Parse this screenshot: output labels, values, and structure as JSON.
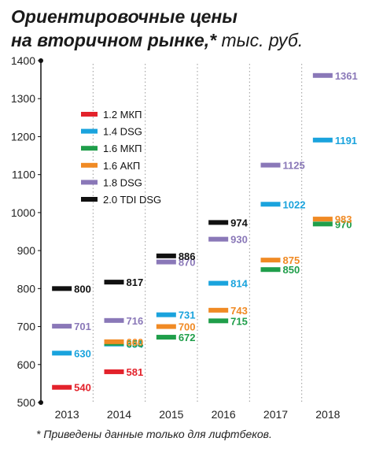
{
  "header": {
    "title_bold_1": "Ориентировочные цены",
    "title_bold_2": "на вторичном рынке,*",
    "title_unit": "тыс. руб."
  },
  "footnote": "* Приведены данные только для лифтбеков.",
  "chart_data": {
    "type": "scatter",
    "title": "Ориентировочные цены на вторичном рынке,* тыс. руб.",
    "xlabel": "",
    "ylabel": "",
    "categories": [
      "2013",
      "2014",
      "2015",
      "2016",
      "2017",
      "2018"
    ],
    "ylim": [
      500,
      1400
    ],
    "yticks": [
      500,
      600,
      700,
      800,
      900,
      1000,
      1100,
      1200,
      1300,
      1400
    ],
    "grid": "vertical dotted",
    "legend_position": "top-left",
    "series": [
      {
        "name": "1.2 МКП",
        "color": "#e3222b",
        "values": [
          540,
          581,
          null,
          null,
          null,
          null
        ]
      },
      {
        "name": "1.4 DSG",
        "color": "#1aa3dd",
        "values": [
          630,
          654,
          731,
          814,
          1022,
          1191
        ]
      },
      {
        "name": "1.6 МКП",
        "color": "#1f9e4a",
        "values": [
          null,
          656,
          672,
          715,
          850,
          970
        ]
      },
      {
        "name": "1.6 АКП",
        "color": "#f08a24",
        "values": [
          null,
          660,
          700,
          743,
          875,
          983
        ]
      },
      {
        "name": "1.8 DSG",
        "color": "#8a78b8",
        "values": [
          701,
          716,
          870,
          930,
          1125,
          1361
        ]
      },
      {
        "name": "2.0 TDI DSG",
        "color": "#111111",
        "values": [
          800,
          817,
          886,
          974,
          null,
          null
        ]
      }
    ]
  }
}
